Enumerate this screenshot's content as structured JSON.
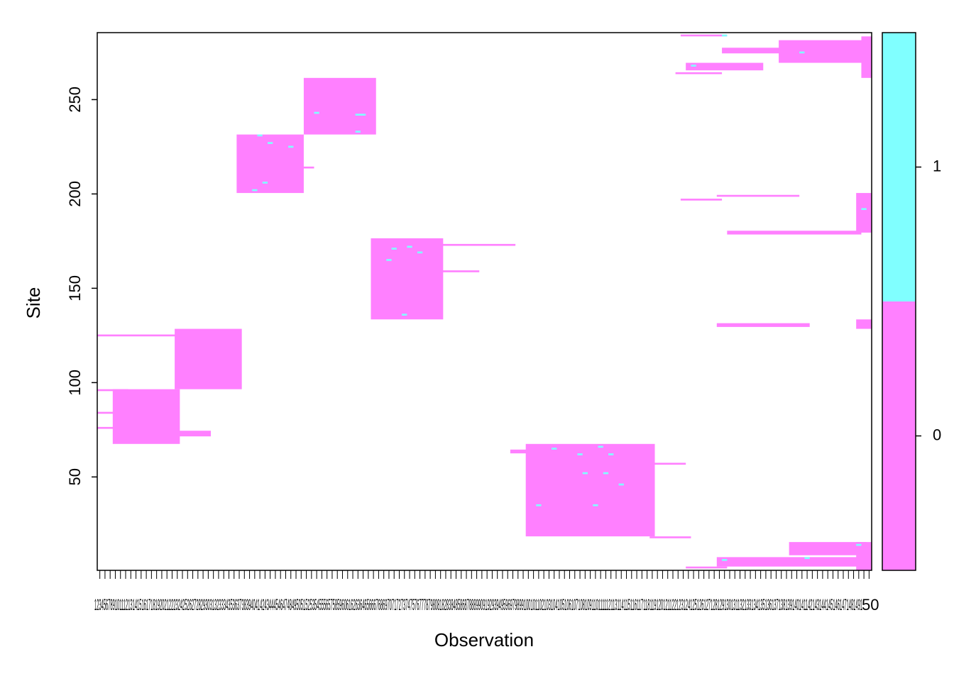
{
  "chart_data": {
    "type": "heatmap",
    "xlabel": "Observation",
    "ylabel": "Site",
    "x_range": [
      1,
      150
    ],
    "ylim": [
      1,
      285
    ],
    "y_ticks": [
      50,
      100,
      150,
      200,
      250
    ],
    "x_tick_count": 150,
    "x_tick_label_text": "1234567891011121314151617181920212223242526272829303132333435363738394041424344454647484950515253545556575859606162636465666768697071727374757677787980818283848586878889909192939495969798991001011021031041051061071081091101111121131141151161171181191201211221231241251261271281291301311321331341351361371381391401411421431441451461471481491",
    "x_tick_label_tail": "50",
    "colorkey": {
      "ticks": [
        0,
        1
      ],
      "levels": [
        {
          "value": 0,
          "color": "#ff80ff"
        },
        {
          "value": 1,
          "color": "#80ffff"
        }
      ]
    },
    "background_color": "#ffffff",
    "cells_value0_color": "#ff80ff",
    "cells_value1_color": "#80ffff",
    "blocks": [
      {
        "x": [
          1,
          16
        ],
        "y": [
          125,
          125
        ],
        "value": 0
      },
      {
        "x": [
          1,
          6
        ],
        "y": [
          96,
          96
        ],
        "value": 0
      },
      {
        "x": [
          1,
          4
        ],
        "y": [
          84,
          84
        ],
        "value": 0
      },
      {
        "x": [
          1,
          4
        ],
        "y": [
          76,
          76
        ],
        "value": 0
      },
      {
        "x": [
          4,
          16
        ],
        "y": [
          68,
          96
        ],
        "value": 0
      },
      {
        "x": [
          16,
          22
        ],
        "y": [
          72,
          74
        ],
        "value": 0
      },
      {
        "x": [
          16,
          28
        ],
        "y": [
          97,
          128
        ],
        "value": 0
      },
      {
        "x": [
          28,
          40
        ],
        "y": [
          201,
          231
        ],
        "value": 0
      },
      {
        "x": [
          40,
          42
        ],
        "y": [
          214,
          214
        ],
        "value": 0
      },
      {
        "x": [
          41,
          54
        ],
        "y": [
          232,
          261
        ],
        "value": 0
      },
      {
        "x": [
          54,
          67
        ],
        "y": [
          134,
          176
        ],
        "value": 0
      },
      {
        "x": [
          67,
          74
        ],
        "y": [
          159,
          159
        ],
        "value": 0
      },
      {
        "x": [
          67,
          81
        ],
        "y": [
          173,
          173
        ],
        "value": 0
      },
      {
        "x": [
          81,
          84
        ],
        "y": [
          63,
          64
        ],
        "value": 0
      },
      {
        "x": [
          84,
          108
        ],
        "y": [
          19,
          67
        ],
        "value": 0
      },
      {
        "x": [
          108,
          114
        ],
        "y": [
          57,
          57
        ],
        "value": 0
      },
      {
        "x": [
          108,
          115
        ],
        "y": [
          18,
          18
        ],
        "value": 0
      },
      {
        "x": [
          115,
          122
        ],
        "y": [
          2,
          2
        ],
        "value": 0
      },
      {
        "x": [
          114,
          122
        ],
        "y": [
          284,
          284
        ],
        "value": 0
      },
      {
        "x": [
          113,
          121
        ],
        "y": [
          264,
          264
        ],
        "value": 0
      },
      {
        "x": [
          115,
          129
        ],
        "y": [
          266,
          269
        ],
        "value": 0
      },
      {
        "x": [
          122,
          134
        ],
        "y": [
          275,
          277
        ],
        "value": 0
      },
      {
        "x": [
          133,
          149
        ],
        "y": [
          270,
          281
        ],
        "value": 0
      },
      {
        "x": [
          114,
          121
        ],
        "y": [
          197,
          197
        ],
        "value": 0
      },
      {
        "x": [
          121,
          136
        ],
        "y": [
          199,
          199
        ],
        "value": 0
      },
      {
        "x": [
          123,
          148
        ],
        "y": [
          179,
          180
        ],
        "value": 0
      },
      {
        "x": [
          121,
          138
        ],
        "y": [
          130,
          131
        ],
        "value": 0
      },
      {
        "x": [
          121,
          149
        ],
        "y": [
          3,
          7
        ],
        "value": 0
      },
      {
        "x": [
          135,
          149
        ],
        "y": [
          9,
          15
        ],
        "value": 0
      },
      {
        "x": [
          148,
          150
        ],
        "y": [
          180,
          200
        ],
        "value": 0
      },
      {
        "x": [
          149,
          150
        ],
        "y": [
          262,
          283
        ],
        "value": 0
      },
      {
        "x": [
          148,
          150
        ],
        "y": [
          129,
          133
        ],
        "value": 0
      },
      {
        "x": [
          148,
          150
        ],
        "y": [
          1,
          15
        ],
        "value": 0
      },
      {
        "x": [
          32,
          32
        ],
        "y": [
          231,
          231
        ],
        "value": 1
      },
      {
        "x": [
          34,
          34
        ],
        "y": [
          227,
          227
        ],
        "value": 1
      },
      {
        "x": [
          38,
          38
        ],
        "y": [
          225,
          225
        ],
        "value": 1
      },
      {
        "x": [
          31,
          31
        ],
        "y": [
          202,
          202
        ],
        "value": 1
      },
      {
        "x": [
          33,
          33
        ],
        "y": [
          206,
          206
        ],
        "value": 1
      },
      {
        "x": [
          43,
          43
        ],
        "y": [
          243,
          243
        ],
        "value": 1
      },
      {
        "x": [
          51,
          52
        ],
        "y": [
          242,
          242
        ],
        "value": 1
      },
      {
        "x": [
          51,
          51
        ],
        "y": [
          233,
          233
        ],
        "value": 1
      },
      {
        "x": [
          58,
          58
        ],
        "y": [
          171,
          171
        ],
        "value": 1
      },
      {
        "x": [
          61,
          61
        ],
        "y": [
          172,
          172
        ],
        "value": 1
      },
      {
        "x": [
          63,
          63
        ],
        "y": [
          169,
          169
        ],
        "value": 1
      },
      {
        "x": [
          57,
          57
        ],
        "y": [
          165,
          165
        ],
        "value": 1
      },
      {
        "x": [
          60,
          60
        ],
        "y": [
          136,
          136
        ],
        "value": 1
      },
      {
        "x": [
          89,
          89
        ],
        "y": [
          65,
          65
        ],
        "value": 1
      },
      {
        "x": [
          98,
          98
        ],
        "y": [
          66,
          66
        ],
        "value": 1
      },
      {
        "x": [
          94,
          94
        ],
        "y": [
          62,
          62
        ],
        "value": 1
      },
      {
        "x": [
          100,
          100
        ],
        "y": [
          62,
          62
        ],
        "value": 1
      },
      {
        "x": [
          95,
          95
        ],
        "y": [
          52,
          52
        ],
        "value": 1
      },
      {
        "x": [
          99,
          99
        ],
        "y": [
          52,
          52
        ],
        "value": 1
      },
      {
        "x": [
          102,
          102
        ],
        "y": [
          46,
          46
        ],
        "value": 1
      },
      {
        "x": [
          86,
          86
        ],
        "y": [
          35,
          35
        ],
        "value": 1
      },
      {
        "x": [
          97,
          97
        ],
        "y": [
          35,
          35
        ],
        "value": 1
      },
      {
        "x": [
          137,
          137
        ],
        "y": [
          275,
          275
        ],
        "value": 1
      },
      {
        "x": [
          122,
          122
        ],
        "y": [
          284,
          284
        ],
        "value": 1
      },
      {
        "x": [
          116,
          116
        ],
        "y": [
          268,
          268
        ],
        "value": 1
      },
      {
        "x": [
          149,
          149
        ],
        "y": [
          192,
          192
        ],
        "value": 1
      },
      {
        "x": [
          148,
          148
        ],
        "y": [
          14,
          14
        ],
        "value": 1
      },
      {
        "x": [
          138,
          138
        ],
        "y": [
          7,
          7
        ],
        "value": 1
      },
      {
        "x": [
          122,
          122
        ],
        "y": [
          6,
          6
        ],
        "value": 1
      }
    ]
  }
}
